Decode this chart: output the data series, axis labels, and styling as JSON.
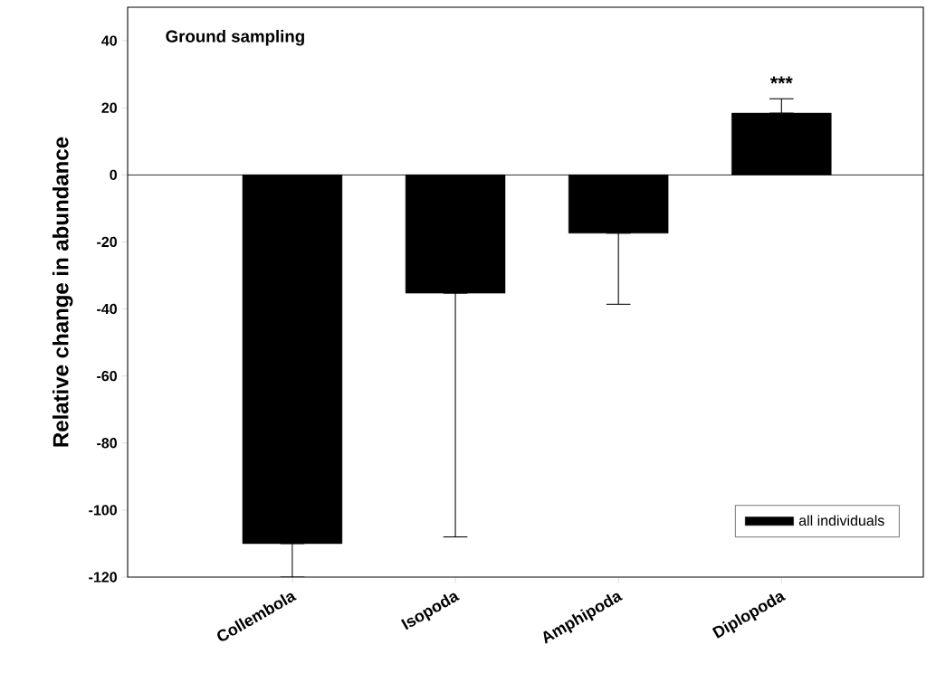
{
  "chart_data": {
    "type": "bar",
    "title": "Ground sampling",
    "ylabel": "Relative change in abundance",
    "categories": [
      "Collembola",
      "Isopoda",
      "Amphipoda",
      "Diplopoda"
    ],
    "series": [
      {
        "name": "all individuals",
        "color": "#000000",
        "values": [
          -110,
          -35.3,
          -17.4,
          18.4
        ],
        "errors": [
          [
            -120,
            -110
          ],
          [
            -108,
            -35.3
          ],
          [
            -38.6,
            -17.4
          ],
          [
            18.4,
            22.7
          ]
        ]
      }
    ],
    "ylim": [
      -120,
      50
    ],
    "yticks": [
      -120,
      -100,
      -80,
      -60,
      -40,
      -20,
      0,
      20,
      40
    ],
    "annotations": [
      "***"
    ],
    "legend": "bottom right"
  }
}
